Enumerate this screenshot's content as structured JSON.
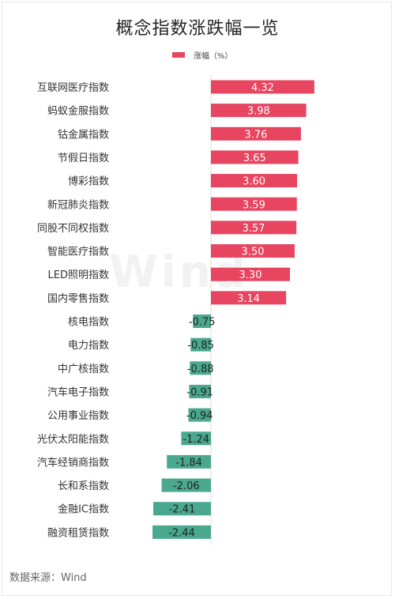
{
  "title": "概念指数涨跌幅一览",
  "legend": {
    "label": "涨幅（%）"
  },
  "source": "数据来源：Wind",
  "watermark": "Wind",
  "colors": {
    "positive": "#e84560",
    "negative": "#4aa88e",
    "axis": "#dddddd"
  },
  "chart_data": {
    "type": "bar",
    "orientation": "horizontal",
    "title": "概念指数涨跌幅一览",
    "legend": [
      "涨幅（%）"
    ],
    "legend_position": "top-center",
    "grid": false,
    "xlim": [
      -2.44,
      4.32
    ],
    "categories": [
      "互联网医疗指数",
      "蚂蚁金服指数",
      "钴金属指数",
      "节假日指数",
      "博彩指数",
      "新冠肺炎指数",
      "同股不同权指数",
      "智能医疗指数",
      "LED照明指数",
      "国内零售指数",
      "核电指数",
      "电力指数",
      "中广核指数",
      "汽车电子指数",
      "公用事业指数",
      "光伏太阳能指数",
      "汽车经销商指数",
      "长和系指数",
      "金融IC指数",
      "融资租赁指数"
    ],
    "series": [
      {
        "name": "涨幅（%）",
        "values": [
          4.32,
          3.98,
          3.76,
          3.65,
          3.6,
          3.59,
          3.57,
          3.5,
          3.3,
          3.14,
          -0.75,
          -0.85,
          -0.88,
          -0.91,
          -0.94,
          -1.24,
          -1.84,
          -2.06,
          -2.41,
          -2.44
        ]
      }
    ],
    "data_labels": [
      "4.32",
      "3.98",
      "3.76",
      "3.65",
      "3.60",
      "3.59",
      "3.57",
      "3.50",
      "3.30",
      "3.14",
      "-0.75",
      "-0.85",
      "-0.88",
      "-0.91",
      "-0.94",
      "-1.24",
      "-1.84",
      "-2.06",
      "-2.41",
      "-2.44"
    ]
  }
}
